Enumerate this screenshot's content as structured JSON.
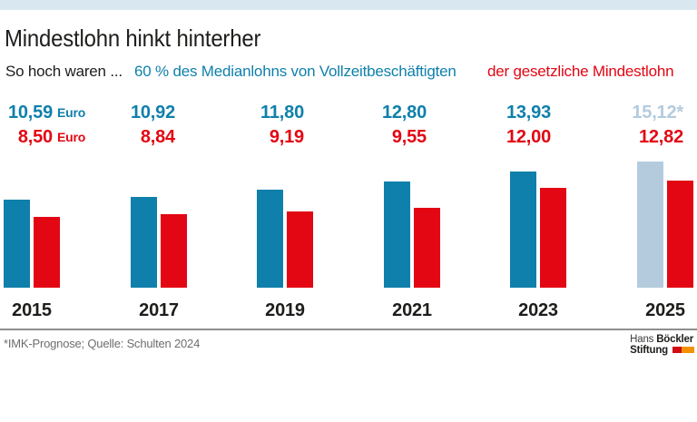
{
  "page": {
    "title": "Mindestlohn hinkt hinterher",
    "subtitle_prefix": "So hoch waren ..."
  },
  "legend": {
    "median_label": "60 % des Medianlohns von Vollzeitbeschäftigten",
    "minimum_label": "der gesetzliche Mindestlohn"
  },
  "colors": {
    "median_blue": "#0f80ab",
    "minimum_red": "#e30613",
    "forecast_light_blue": "#b4cbde",
    "top_band": "#d9e8f0"
  },
  "chart_data": {
    "type": "bar",
    "title": "Mindestlohn hinkt hinterher",
    "categories": [
      "2015",
      "2017",
      "2019",
      "2021",
      "2023",
      "2025"
    ],
    "series": [
      {
        "name": "60 % des Medianlohns von Vollzeitbeschäftigten",
        "color": "#0f80ab",
        "values": [
          10.59,
          10.92,
          11.8,
          12.8,
          13.93,
          15.12
        ],
        "display_labels": [
          "10,59",
          "10,92",
          "11,80",
          "12,80",
          "13,93",
          "15,12*"
        ]
      },
      {
        "name": "der gesetzliche Mindestlohn",
        "color": "#e30613",
        "values": [
          8.5,
          8.84,
          9.19,
          9.55,
          12.0,
          12.82
        ],
        "display_labels": [
          "8,50",
          "8,84",
          "9,19",
          "9,55",
          "12,00",
          "12,82"
        ]
      }
    ],
    "unit": "Euro",
    "unit_shown_on_first_column_only": true,
    "forecast_category": "2025",
    "forecast_note_marker": "*",
    "ylim": [
      0,
      16
    ],
    "grid": false,
    "legend_position": "top",
    "value_labels_position": "above-chart"
  },
  "footer": {
    "note": "*IMK-Prognose; Quelle: Schulten 2024",
    "logo": {
      "line1_regular": "Hans",
      "line1_bold": "Böckler",
      "line2_bold": "Stiftung"
    }
  }
}
